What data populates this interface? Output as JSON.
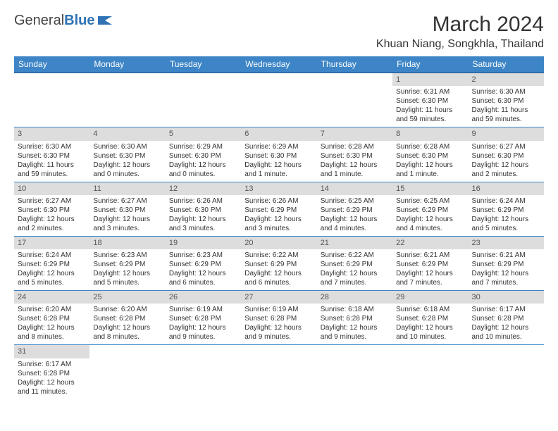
{
  "logo": {
    "text_a": "General",
    "text_b": "Blue"
  },
  "title": "March 2024",
  "location": "Khuan Niang, Songkhla, Thailand",
  "colors": {
    "header_bg": "#3d85c6",
    "header_border": "#2f6ea8",
    "daynum_bg": "#dddddd",
    "cell_border": "#3d85c6",
    "page_bg": "#ffffff",
    "text": "#333333",
    "logo_blue": "#2f73b5"
  },
  "typography": {
    "title_fontsize": 30,
    "location_fontsize": 16,
    "header_fontsize": 12,
    "cell_fontsize": 10
  },
  "dayHeaders": [
    "Sunday",
    "Monday",
    "Tuesday",
    "Wednesday",
    "Thursday",
    "Friday",
    "Saturday"
  ],
  "weeks": [
    [
      null,
      null,
      null,
      null,
      null,
      {
        "n": "1",
        "sr": "6:31 AM",
        "ss": "6:30 PM",
        "dl": "11 hours and 59 minutes."
      },
      {
        "n": "2",
        "sr": "6:30 AM",
        "ss": "6:30 PM",
        "dl": "11 hours and 59 minutes."
      }
    ],
    [
      {
        "n": "3",
        "sr": "6:30 AM",
        "ss": "6:30 PM",
        "dl": "11 hours and 59 minutes."
      },
      {
        "n": "4",
        "sr": "6:30 AM",
        "ss": "6:30 PM",
        "dl": "12 hours and 0 minutes."
      },
      {
        "n": "5",
        "sr": "6:29 AM",
        "ss": "6:30 PM",
        "dl": "12 hours and 0 minutes."
      },
      {
        "n": "6",
        "sr": "6:29 AM",
        "ss": "6:30 PM",
        "dl": "12 hours and 1 minute."
      },
      {
        "n": "7",
        "sr": "6:28 AM",
        "ss": "6:30 PM",
        "dl": "12 hours and 1 minute."
      },
      {
        "n": "8",
        "sr": "6:28 AM",
        "ss": "6:30 PM",
        "dl": "12 hours and 1 minute."
      },
      {
        "n": "9",
        "sr": "6:27 AM",
        "ss": "6:30 PM",
        "dl": "12 hours and 2 minutes."
      }
    ],
    [
      {
        "n": "10",
        "sr": "6:27 AM",
        "ss": "6:30 PM",
        "dl": "12 hours and 2 minutes."
      },
      {
        "n": "11",
        "sr": "6:27 AM",
        "ss": "6:30 PM",
        "dl": "12 hours and 3 minutes."
      },
      {
        "n": "12",
        "sr": "6:26 AM",
        "ss": "6:30 PM",
        "dl": "12 hours and 3 minutes."
      },
      {
        "n": "13",
        "sr": "6:26 AM",
        "ss": "6:29 PM",
        "dl": "12 hours and 3 minutes."
      },
      {
        "n": "14",
        "sr": "6:25 AM",
        "ss": "6:29 PM",
        "dl": "12 hours and 4 minutes."
      },
      {
        "n": "15",
        "sr": "6:25 AM",
        "ss": "6:29 PM",
        "dl": "12 hours and 4 minutes."
      },
      {
        "n": "16",
        "sr": "6:24 AM",
        "ss": "6:29 PM",
        "dl": "12 hours and 5 minutes."
      }
    ],
    [
      {
        "n": "17",
        "sr": "6:24 AM",
        "ss": "6:29 PM",
        "dl": "12 hours and 5 minutes."
      },
      {
        "n": "18",
        "sr": "6:23 AM",
        "ss": "6:29 PM",
        "dl": "12 hours and 5 minutes."
      },
      {
        "n": "19",
        "sr": "6:23 AM",
        "ss": "6:29 PM",
        "dl": "12 hours and 6 minutes."
      },
      {
        "n": "20",
        "sr": "6:22 AM",
        "ss": "6:29 PM",
        "dl": "12 hours and 6 minutes."
      },
      {
        "n": "21",
        "sr": "6:22 AM",
        "ss": "6:29 PM",
        "dl": "12 hours and 7 minutes."
      },
      {
        "n": "22",
        "sr": "6:21 AM",
        "ss": "6:29 PM",
        "dl": "12 hours and 7 minutes."
      },
      {
        "n": "23",
        "sr": "6:21 AM",
        "ss": "6:29 PM",
        "dl": "12 hours and 7 minutes."
      }
    ],
    [
      {
        "n": "24",
        "sr": "6:20 AM",
        "ss": "6:28 PM",
        "dl": "12 hours and 8 minutes."
      },
      {
        "n": "25",
        "sr": "6:20 AM",
        "ss": "6:28 PM",
        "dl": "12 hours and 8 minutes."
      },
      {
        "n": "26",
        "sr": "6:19 AM",
        "ss": "6:28 PM",
        "dl": "12 hours and 9 minutes."
      },
      {
        "n": "27",
        "sr": "6:19 AM",
        "ss": "6:28 PM",
        "dl": "12 hours and 9 minutes."
      },
      {
        "n": "28",
        "sr": "6:18 AM",
        "ss": "6:28 PM",
        "dl": "12 hours and 9 minutes."
      },
      {
        "n": "29",
        "sr": "6:18 AM",
        "ss": "6:28 PM",
        "dl": "12 hours and 10 minutes."
      },
      {
        "n": "30",
        "sr": "6:17 AM",
        "ss": "6:28 PM",
        "dl": "12 hours and 10 minutes."
      }
    ],
    [
      {
        "n": "31",
        "sr": "6:17 AM",
        "ss": "6:28 PM",
        "dl": "12 hours and 11 minutes."
      },
      null,
      null,
      null,
      null,
      null,
      null
    ]
  ],
  "labels": {
    "sunrise": "Sunrise:",
    "sunset": "Sunset:",
    "daylight": "Daylight:"
  }
}
